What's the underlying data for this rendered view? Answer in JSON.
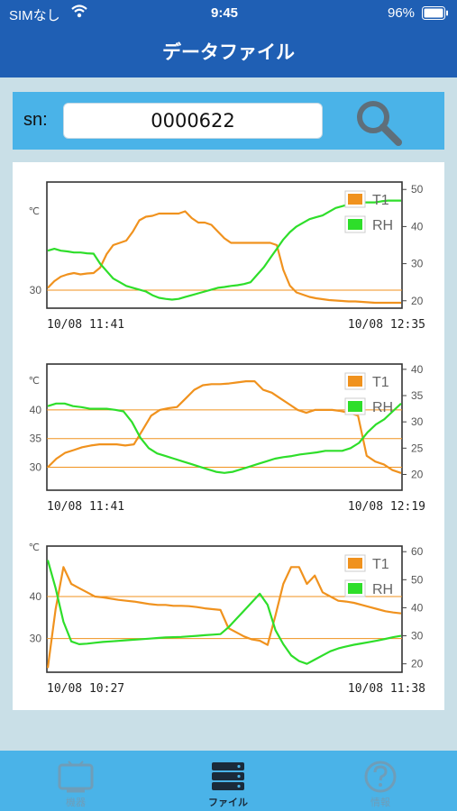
{
  "status_bar": {
    "carrier": "SIMなし",
    "time": "9:45",
    "battery": "96%"
  },
  "nav": {
    "title": "データファイル"
  },
  "search": {
    "label": "sn:",
    "value": "0000622"
  },
  "chart_data": [
    {
      "type": "line",
      "left_axis": {
        "label": "℃",
        "ticks": [
          30
        ],
        "range": [
          26,
          54
        ]
      },
      "right_axis": {
        "ticks": [
          20,
          30,
          40,
          50
        ],
        "range": [
          18,
          52
        ]
      },
      "x_start": "10/08 11:41",
      "x_end": "10/08 12:35",
      "legend": [
        "T1",
        "RH"
      ],
      "series": [
        {
          "name": "T1",
          "axis": "left",
          "color": "#f0921e",
          "values": [
            30.5,
            32,
            33,
            33.5,
            33.8,
            33.5,
            33.7,
            33.8,
            35,
            38,
            40,
            40.5,
            41,
            43,
            45.5,
            46.3,
            46.5,
            47,
            47,
            47,
            47,
            47.5,
            46,
            45,
            45,
            44.5,
            43,
            41.5,
            40.5,
            40.5,
            40.5,
            40.5,
            40.5,
            40.5,
            40.5,
            40,
            34.5,
            31,
            29.5,
            29,
            28.5,
            28.2,
            28,
            27.8,
            27.7,
            27.6,
            27.5,
            27.5,
            27.4,
            27.3,
            27.2,
            27.2,
            27.2,
            27.2,
            27.2
          ]
        },
        {
          "name": "RH",
          "axis": "right",
          "color": "#2ede2a",
          "values": [
            33.5,
            34,
            33.5,
            33.3,
            33,
            33,
            32.8,
            32.7,
            30,
            28,
            26,
            25,
            24,
            23.5,
            23,
            22.5,
            21.5,
            20.8,
            20.5,
            20.3,
            20.5,
            21,
            21.5,
            22,
            22.5,
            23,
            23.5,
            23.7,
            24,
            24.2,
            24.5,
            25,
            27,
            29,
            31.5,
            34,
            36.5,
            38.5,
            40,
            41,
            42,
            42.5,
            43,
            44,
            45,
            45.5,
            46,
            46.3,
            46.5,
            46.5,
            46.5,
            46.8,
            47,
            47,
            47
          ]
        }
      ]
    },
    {
      "type": "line",
      "left_axis": {
        "label": "℃",
        "ticks": [
          30,
          35,
          40
        ],
        "range": [
          26,
          48
        ]
      },
      "right_axis": {
        "ticks": [
          20,
          25,
          30,
          35,
          40
        ],
        "range": [
          17,
          41
        ]
      },
      "x_start": "10/08 11:41",
      "x_end": "10/08 12:19",
      "legend": [
        "T1",
        "RH"
      ],
      "series": [
        {
          "name": "T1",
          "axis": "left",
          "color": "#f0921e",
          "values": [
            30,
            31.5,
            32.5,
            33,
            33.5,
            33.8,
            34,
            34,
            34,
            33.8,
            34,
            36.5,
            39,
            40,
            40.3,
            40.5,
            42,
            43.5,
            44.3,
            44.5,
            44.5,
            44.6,
            44.8,
            45,
            45,
            43.5,
            43,
            42,
            41,
            40,
            39.5,
            40,
            40,
            40,
            39.8,
            39.5,
            39,
            32,
            31,
            30.5,
            29.5,
            29
          ]
        },
        {
          "name": "RH",
          "axis": "right",
          "color": "#2ede2a",
          "values": [
            33,
            33.5,
            33.5,
            33,
            32.8,
            32.5,
            32.5,
            32.5,
            32.3,
            32,
            30,
            27,
            25,
            24,
            23.5,
            23,
            22.5,
            22,
            21.5,
            21,
            20.5,
            20.3,
            20.5,
            21,
            21.5,
            22,
            22.5,
            23,
            23.3,
            23.5,
            23.8,
            24,
            24.2,
            24.5,
            24.5,
            24.5,
            25,
            26,
            28,
            29.5,
            30.5,
            32,
            33.5
          ]
        }
      ]
    },
    {
      "type": "line",
      "left_axis": {
        "label": "℃",
        "ticks": [
          30,
          40
        ],
        "range": [
          22,
          52
        ]
      },
      "right_axis": {
        "ticks": [
          20,
          30,
          40,
          50,
          60
        ],
        "range": [
          17,
          62
        ]
      },
      "x_start": "10/08 10:27",
      "x_end": "10/08 11:38",
      "legend": [
        "T1",
        "RH"
      ],
      "series": [
        {
          "name": "T1",
          "axis": "left",
          "color": "#f0921e",
          "values": [
            23,
            37,
            47,
            43,
            42,
            41,
            40,
            39.8,
            39.5,
            39.2,
            39,
            38.8,
            38.5,
            38.2,
            38,
            38,
            37.8,
            37.8,
            37.7,
            37.5,
            37.2,
            37,
            36.8,
            32.5,
            31.5,
            30.5,
            29.8,
            29.5,
            28.5,
            35.5,
            43,
            47,
            47,
            43,
            45,
            41,
            40,
            39,
            38.8,
            38.5,
            38,
            37.5,
            37,
            36.5,
            36.2,
            36
          ]
        },
        {
          "name": "RH",
          "axis": "right",
          "color": "#2ede2a",
          "values": [
            57,
            47,
            35,
            28,
            27,
            27.2,
            27.5,
            27.8,
            28,
            28.2,
            28.4,
            28.6,
            28.8,
            29,
            29.2,
            29.4,
            29.5,
            29.6,
            29.8,
            30,
            30.2,
            30.4,
            30.6,
            33,
            36,
            39,
            42,
            45,
            41,
            32,
            27,
            23,
            21,
            20,
            21.5,
            23,
            24.5,
            25.5,
            26.2,
            26.8,
            27.3,
            27.8,
            28.3,
            28.9,
            29.5,
            30
          ]
        }
      ]
    }
  ],
  "tab_bar": {
    "tabs": [
      {
        "label": "機器",
        "icon": "device-icon",
        "color": "#6f9db8"
      },
      {
        "label": "ファイル",
        "icon": "server-icon",
        "color": "#1a2a3a",
        "selected": true
      },
      {
        "label": "情報",
        "icon": "help-icon",
        "color": "#6f9db8"
      }
    ]
  }
}
